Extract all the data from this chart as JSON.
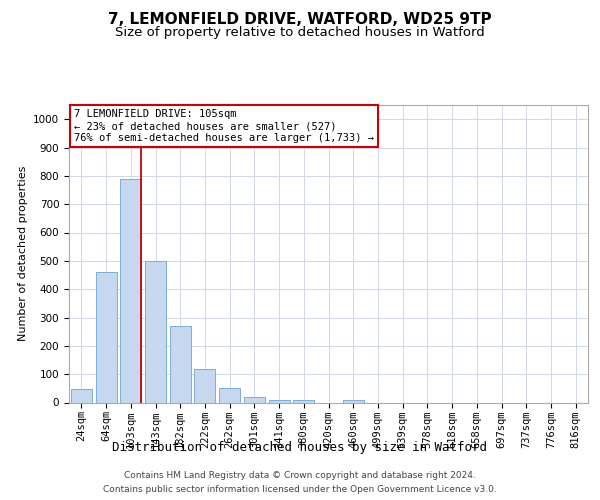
{
  "title1": "7, LEMONFIELD DRIVE, WATFORD, WD25 9TP",
  "title2": "Size of property relative to detached houses in Watford",
  "xlabel": "Distribution of detached houses by size in Watford",
  "ylabel": "Number of detached properties",
  "categories": [
    "24sqm",
    "64sqm",
    "103sqm",
    "143sqm",
    "182sqm",
    "222sqm",
    "262sqm",
    "301sqm",
    "341sqm",
    "380sqm",
    "420sqm",
    "460sqm",
    "499sqm",
    "539sqm",
    "578sqm",
    "618sqm",
    "658sqm",
    "697sqm",
    "737sqm",
    "776sqm",
    "816sqm"
  ],
  "values": [
    46,
    460,
    790,
    500,
    270,
    120,
    50,
    18,
    10,
    10,
    0,
    8,
    0,
    0,
    0,
    0,
    0,
    0,
    0,
    0,
    0
  ],
  "bar_color": "#c5d8f0",
  "bar_edge_color": "#7bafd4",
  "property_line_color": "#cc0000",
  "annotation_line1": "7 LEMONFIELD DRIVE: 105sqm",
  "annotation_line2": "← 23% of detached houses are smaller (527)",
  "annotation_line3": "76% of semi-detached houses are larger (1,733) →",
  "annotation_box_color": "#ffffff",
  "annotation_box_edge_color": "#cc0000",
  "ylim": [
    0,
    1050
  ],
  "yticks": [
    0,
    100,
    200,
    300,
    400,
    500,
    600,
    700,
    800,
    900,
    1000
  ],
  "grid_color": "#d0d8e8",
  "footer1": "Contains HM Land Registry data © Crown copyright and database right 2024.",
  "footer2": "Contains public sector information licensed under the Open Government Licence v3.0.",
  "title1_fontsize": 11,
  "title2_fontsize": 9.5,
  "xlabel_fontsize": 9,
  "ylabel_fontsize": 8,
  "tick_fontsize": 7.5,
  "annotation_fontsize": 7.5,
  "footer_fontsize": 6.5,
  "background_color": "#ffffff"
}
